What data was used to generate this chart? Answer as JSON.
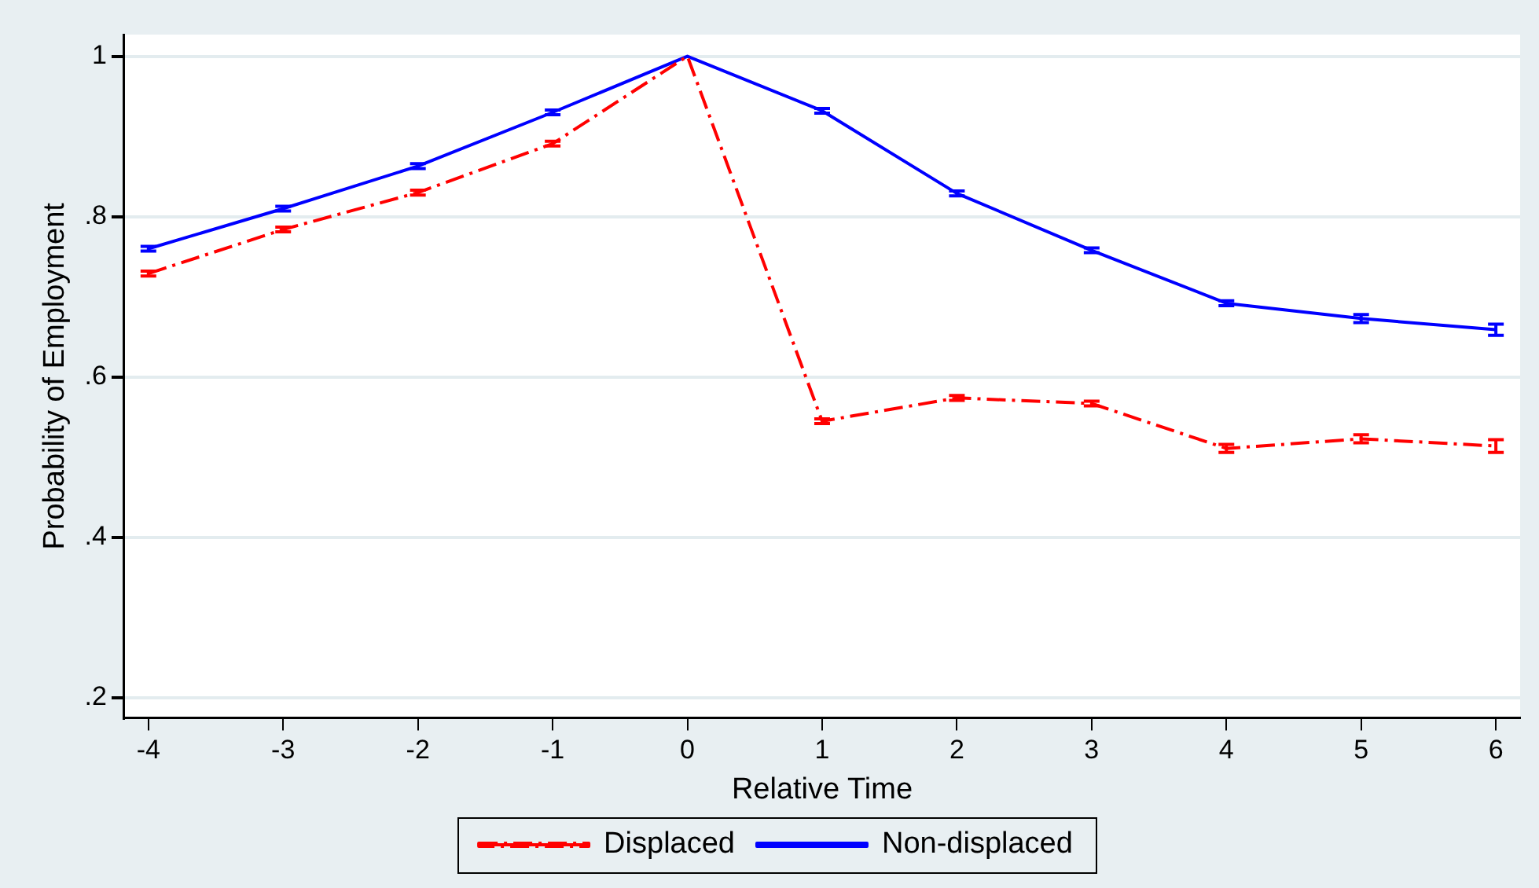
{
  "chart_data": {
    "type": "line",
    "xlabel": "Relative Time",
    "ylabel": "Probability of Employment",
    "x": [
      -4,
      -3,
      -2,
      -1,
      0,
      1,
      2,
      3,
      4,
      5,
      6
    ],
    "xlim": [
      -4.18,
      6.18
    ],
    "xticks": [
      -4,
      -3,
      -2,
      -1,
      0,
      1,
      2,
      3,
      4,
      5,
      6
    ],
    "ylim": [
      0.175,
      1.027
    ],
    "yticks": [
      {
        "value": 0.2,
        "label": ".2"
      },
      {
        "value": 0.4,
        "label": ".4"
      },
      {
        "value": 0.6,
        "label": ".6"
      },
      {
        "value": 0.8,
        "label": ".8"
      },
      1
    ],
    "grid": "y",
    "legend": "bottom",
    "marker": "none",
    "series": [
      {
        "name": "Displaced",
        "color": "#ff0000",
        "line_style": "dashdot",
        "values": [
          0.729,
          0.784,
          0.83,
          0.891,
          1.0,
          0.545,
          0.574,
          0.567,
          0.511,
          0.523,
          0.514
        ],
        "errors": [
          0.003,
          0.003,
          0.003,
          0.003,
          null,
          0.003,
          0.003,
          0.003,
          0.005,
          0.005,
          0.008
        ]
      },
      {
        "name": "Non-displaced",
        "color": "#0000ff",
        "line_style": "solid",
        "values": [
          0.76,
          0.81,
          0.863,
          0.93,
          1.0,
          0.932,
          0.829,
          0.758,
          0.692,
          0.673,
          0.659
        ],
        "errors": [
          0.003,
          0.003,
          0.003,
          0.003,
          null,
          0.003,
          0.003,
          0.003,
          0.003,
          0.005,
          0.007
        ]
      }
    ]
  }
}
